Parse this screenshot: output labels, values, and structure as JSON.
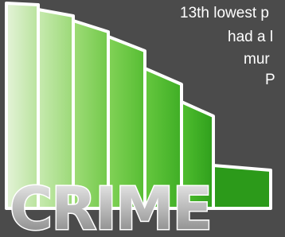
{
  "graphic": {
    "word": "CRIME"
  },
  "text_lines": [
    "13th lowest p",
    "had a l",
    "mur",
    "P"
  ]
}
